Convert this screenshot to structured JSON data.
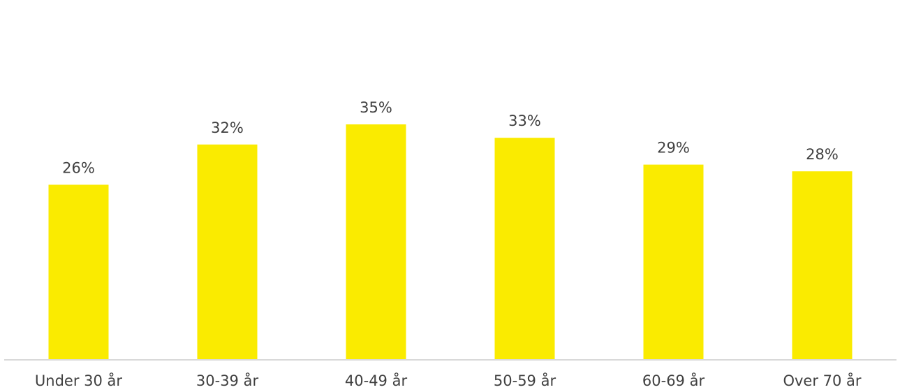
{
  "chart_data": {
    "type": "bar",
    "title": "",
    "xlabel": "",
    "ylabel": "",
    "categories": [
      "Under 30 år",
      "30-39 år",
      "40-49 år",
      "50-59 år",
      "60-69 år",
      "Over 70 år"
    ],
    "values": [
      26,
      32,
      35,
      33,
      29,
      28
    ],
    "value_labels": [
      "26%",
      "32%",
      "35%",
      "33%",
      "29%",
      "28%"
    ],
    "unit": "%",
    "ylim": [
      0,
      35
    ],
    "grid": false,
    "legend": "none",
    "colors": {
      "bar": "#FAEB00",
      "axis": "#D9D9D9",
      "text": "#404040"
    }
  }
}
